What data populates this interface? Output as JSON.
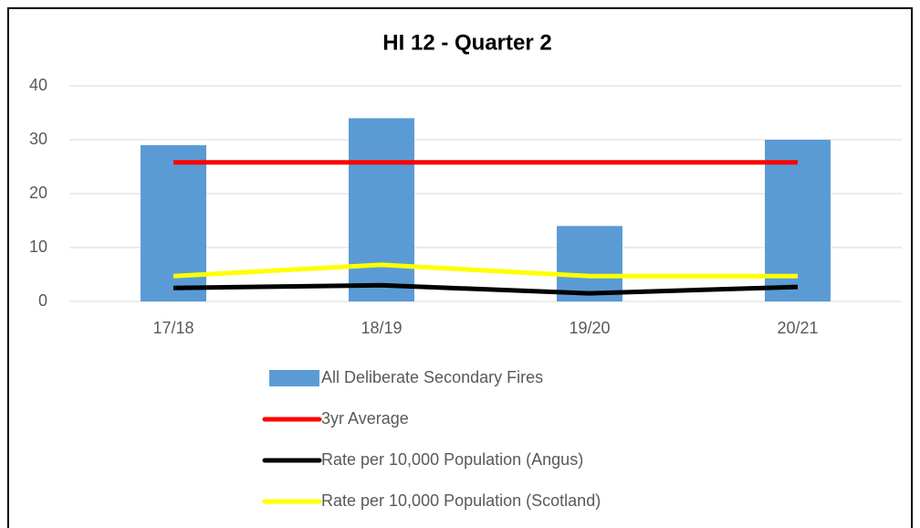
{
  "chart_data": {
    "type": "bar",
    "title": "HI 12 - Quarter 2",
    "categories": [
      "17/18",
      "18/19",
      "19/20",
      "20/21"
    ],
    "series": [
      {
        "name": "All Deliberate Secondary Fires",
        "type": "bar",
        "color": "#5b9bd5",
        "values": [
          29,
          34,
          14,
          30
        ]
      },
      {
        "name": "3yr Average",
        "type": "line",
        "color": "#ff0000",
        "values": [
          25.8,
          25.8,
          25.8,
          25.8
        ]
      },
      {
        "name": "Rate per 10,000 Population (Angus)",
        "type": "line",
        "color": "#000000",
        "values": [
          2.5,
          3,
          1.5,
          2.7
        ]
      },
      {
        "name": "Rate per 10,000 Population (Scotland)",
        "type": "line",
        "color": "#ffff00",
        "values": [
          4.7,
          6.8,
          4.7,
          4.7
        ]
      }
    ],
    "ylim": [
      0,
      40
    ],
    "yticks": [
      0,
      10,
      20,
      30,
      40
    ],
    "grid": true,
    "legend": "bottom"
  }
}
